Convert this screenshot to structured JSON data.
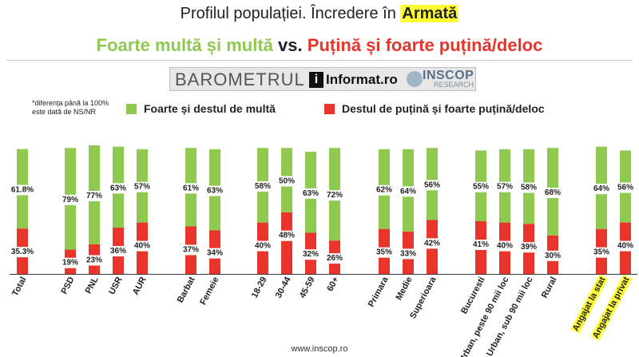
{
  "header": {
    "title_prefix": "Profilul populației. Încredere în",
    "title_highlight": "Armată",
    "subtitle_green": "Foarte multă și multă",
    "subtitle_vs": "vs.",
    "subtitle_red": "Puțină și foarte puțină/deloc"
  },
  "banner": {
    "barometrul": "BAROMETRUL",
    "informat": "Informat.ro",
    "inscop": "INSCOP",
    "research": "RESEARCH"
  },
  "note": "*diferența până la 100% este dată de NS/NR",
  "footer": "www.inscop.ro",
  "colors": {
    "green": "#8fc94f",
    "red": "#e8342a",
    "highlight": "#ffff33"
  },
  "chart_data": {
    "type": "bar",
    "stacked": true,
    "ylim": [
      0,
      100
    ],
    "grid": false,
    "legend_placement": "top",
    "categories": [
      "Total",
      "PSD",
      "PNL",
      "USR",
      "AUR",
      "Barbat",
      "Femeie",
      "18-29",
      "30-44",
      "45-59",
      "60+",
      "Primara",
      "Medie",
      "Superioara",
      "Bucuresti",
      "Urban, peste 90 mii loc",
      "Urban, sub 90 mii loc",
      "Rural",
      "Angajat la stat",
      "Angajat la privat"
    ],
    "highlighted_categories": [
      "Angajat la stat",
      "Angajat la privat"
    ],
    "series": [
      {
        "name": "Destul de puțină și foarte puțină/deloc",
        "color": "#e8342a",
        "values": [
          35.3,
          19,
          23,
          36,
          40,
          37,
          34,
          40,
          48,
          32,
          26,
          35,
          33,
          42,
          41,
          40,
          39,
          30,
          35,
          40
        ],
        "labels": [
          "35.3%",
          "19%",
          "23%",
          "36%",
          "40%",
          "37%",
          "34%",
          "40%",
          "48%",
          "32%",
          "26%",
          "35%",
          "33%",
          "42%",
          "41%",
          "40%",
          "39%",
          "30%",
          "35%",
          "40%"
        ]
      },
      {
        "name": "Foarte și destul de multă",
        "color": "#8fc94f",
        "values": [
          61.8,
          79,
          77,
          63,
          57,
          61,
          63,
          58,
          50,
          63,
          72,
          62,
          64,
          56,
          55,
          57,
          58,
          68,
          64,
          56
        ],
        "labels": [
          "61.8%",
          "79%",
          "77%",
          "63%",
          "57%",
          "61%",
          "63%",
          "58%",
          "50%",
          "63%",
          "72%",
          "62%",
          "64%",
          "56%",
          "55%",
          "57%",
          "58%",
          "68%",
          "64%",
          "56%"
        ]
      }
    ]
  }
}
